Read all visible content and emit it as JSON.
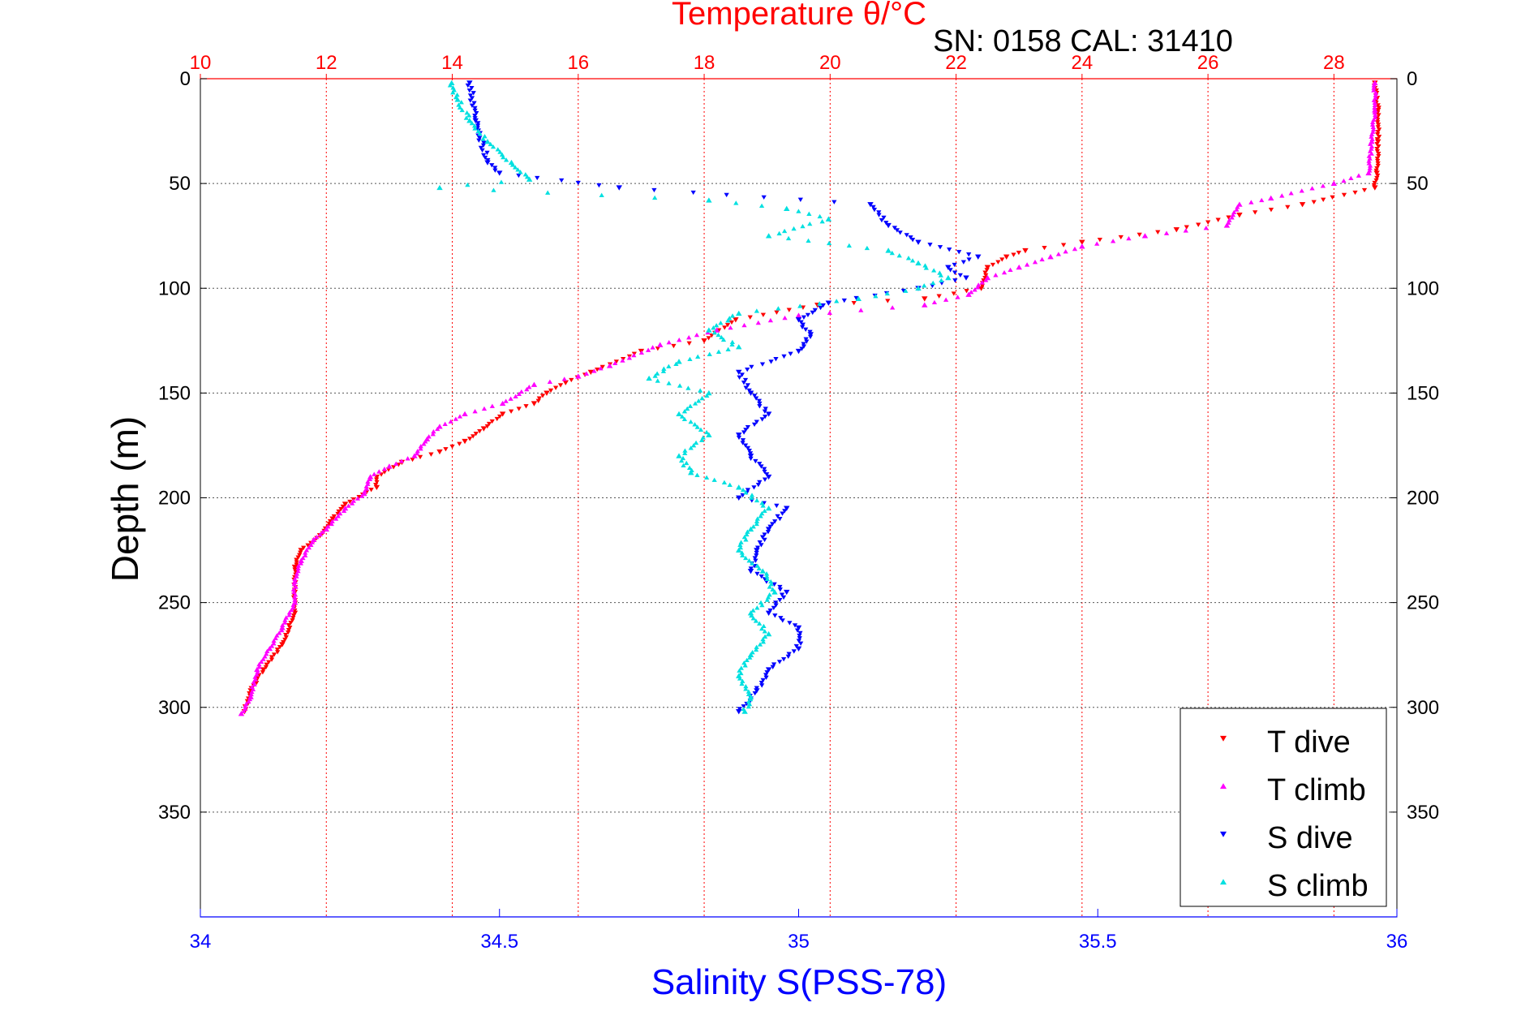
{
  "chart_data": {
    "type": "scatter",
    "title": "Temperature θ/°C",
    "subtitle": "SN: 0158  CAL: 31410",
    "ylabel": "Depth (m)",
    "xlabel": "Salinity S(PSS-78)",
    "ylim": [
      0,
      400
    ],
    "y_reversed": true,
    "y_ticks": [
      "0",
      "50",
      "100",
      "150",
      "200",
      "250",
      "300",
      "350"
    ],
    "temperature_axis": {
      "position": "top",
      "range": [
        10,
        29
      ],
      "ticks": [
        "10",
        "12",
        "14",
        "16",
        "18",
        "20",
        "22",
        "24",
        "26",
        "28"
      ],
      "grid": "dotted-red"
    },
    "salinity_axis": {
      "position": "bottom",
      "range": [
        34,
        36
      ],
      "ticks": [
        "34",
        "34.5",
        "35",
        "35.5",
        "36"
      ]
    },
    "depth_grid": "dotted-gray",
    "legend_position": "bottom-right",
    "colors": {
      "title": "#ff0000",
      "temperature_axis": "#ff0000",
      "salinity_axis": "#0000ff",
      "text": "#000000"
    },
    "series": [
      {
        "name": "T dive",
        "axis": "temperature",
        "color": "#ff0000",
        "marker": "triangle-down",
        "points": [
          [
            28.65,
            2
          ],
          [
            28.7,
            15
          ],
          [
            28.7,
            30
          ],
          [
            28.68,
            45
          ],
          [
            28.65,
            52
          ],
          [
            27.5,
            60
          ],
          [
            26.5,
            65
          ],
          [
            25.5,
            72
          ],
          [
            24,
            78
          ],
          [
            23.1,
            82
          ],
          [
            22.8,
            85
          ],
          [
            22.5,
            90
          ],
          [
            22.4,
            100
          ],
          [
            21.5,
            105
          ],
          [
            19.8,
            108
          ],
          [
            18.5,
            115
          ],
          [
            18,
            125
          ],
          [
            17,
            130
          ],
          [
            16.2,
            140
          ],
          [
            15.8,
            145
          ],
          [
            15.5,
            150
          ],
          [
            15.3,
            155
          ],
          [
            14.8,
            160
          ],
          [
            14.5,
            167
          ],
          [
            14.2,
            173
          ],
          [
            13.8,
            178
          ],
          [
            13.2,
            183
          ],
          [
            12.8,
            190
          ],
          [
            12.8,
            195
          ],
          [
            12.3,
            203
          ],
          [
            12.1,
            210
          ],
          [
            11.9,
            218
          ],
          [
            11.6,
            225
          ],
          [
            11.5,
            233
          ],
          [
            11.5,
            245
          ],
          [
            11.5,
            255
          ],
          [
            11.3,
            270
          ],
          [
            11,
            282
          ],
          [
            10.8,
            292
          ],
          [
            10.7,
            302
          ]
        ]
      },
      {
        "name": "T climb",
        "axis": "temperature",
        "color": "#ff00ff",
        "marker": "triangle-up",
        "points": [
          [
            28.65,
            2
          ],
          [
            28.65,
            15
          ],
          [
            28.6,
            30
          ],
          [
            28.55,
            45
          ],
          [
            28,
            50
          ],
          [
            27,
            57
          ],
          [
            26.5,
            60
          ],
          [
            26.3,
            70
          ],
          [
            25,
            75
          ],
          [
            24,
            80
          ],
          [
            23.5,
            85
          ],
          [
            23,
            90
          ],
          [
            22.5,
            95
          ],
          [
            22.2,
            103
          ],
          [
            21.5,
            108
          ],
          [
            19.5,
            113
          ],
          [
            18.2,
            120
          ],
          [
            17.3,
            127
          ],
          [
            16.5,
            137
          ],
          [
            16,
            142
          ],
          [
            15.3,
            146
          ],
          [
            14.8,
            155
          ],
          [
            14.2,
            160
          ],
          [
            13.8,
            166
          ],
          [
            13.6,
            172
          ],
          [
            13.4,
            180
          ],
          [
            13,
            185
          ],
          [
            12.7,
            190
          ],
          [
            12.6,
            198
          ],
          [
            12.3,
            205
          ],
          [
            12,
            215
          ],
          [
            11.8,
            220
          ],
          [
            11.6,
            230
          ],
          [
            11.5,
            240
          ],
          [
            11.5,
            250
          ],
          [
            11.3,
            262
          ],
          [
            11.1,
            272
          ],
          [
            10.9,
            282
          ],
          [
            10.8,
            295
          ],
          [
            10.65,
            303
          ]
        ]
      },
      {
        "name": "S dive",
        "axis": "salinity",
        "color": "#0000ff",
        "marker": "triangle-down",
        "points": [
          [
            34.45,
            2
          ],
          [
            34.46,
            20
          ],
          [
            34.48,
            40
          ],
          [
            34.5,
            45
          ],
          [
            34.7,
            52
          ],
          [
            35.12,
            60
          ],
          [
            35.15,
            70
          ],
          [
            35.2,
            78
          ],
          [
            35.3,
            85
          ],
          [
            35.25,
            90
          ],
          [
            35.28,
            95
          ],
          [
            35.2,
            100
          ],
          [
            35.05,
            107
          ],
          [
            35,
            115
          ],
          [
            35.02,
            122
          ],
          [
            35,
            130
          ],
          [
            34.9,
            140
          ],
          [
            34.92,
            150
          ],
          [
            34.95,
            160
          ],
          [
            34.9,
            170
          ],
          [
            34.92,
            180
          ],
          [
            34.95,
            190
          ],
          [
            34.9,
            200
          ],
          [
            34.98,
            205
          ],
          [
            34.95,
            215
          ],
          [
            34.93,
            225
          ],
          [
            34.92,
            235
          ],
          [
            34.98,
            245
          ],
          [
            34.95,
            255
          ],
          [
            35,
            262
          ],
          [
            35,
            272
          ],
          [
            34.95,
            282
          ],
          [
            34.93,
            292
          ],
          [
            34.9,
            302
          ]
        ]
      },
      {
        "name": "S climb",
        "axis": "salinity",
        "color": "#00e0e0",
        "marker": "triangle-up",
        "points": [
          [
            34.42,
            2
          ],
          [
            34.43,
            10
          ],
          [
            34.45,
            20
          ],
          [
            34.48,
            30
          ],
          [
            34.52,
            40
          ],
          [
            34.55,
            48
          ],
          [
            34.4,
            52
          ],
          [
            34.85,
            58
          ],
          [
            34.98,
            62
          ],
          [
            35.05,
            67
          ],
          [
            34.95,
            75
          ],
          [
            35.15,
            82
          ],
          [
            35.2,
            88
          ],
          [
            35.25,
            95
          ],
          [
            35.2,
            100
          ],
          [
            35.1,
            105
          ],
          [
            34.9,
            112
          ],
          [
            34.85,
            120
          ],
          [
            34.9,
            128
          ],
          [
            34.8,
            135
          ],
          [
            34.75,
            143
          ],
          [
            34.85,
            150
          ],
          [
            34.8,
            160
          ],
          [
            34.85,
            170
          ],
          [
            34.8,
            180
          ],
          [
            34.82,
            188
          ],
          [
            34.9,
            195
          ],
          [
            34.95,
            205
          ],
          [
            34.92,
            215
          ],
          [
            34.9,
            225
          ],
          [
            34.94,
            235
          ],
          [
            34.96,
            245
          ],
          [
            34.92,
            255
          ],
          [
            34.95,
            265
          ],
          [
            34.92,
            275
          ],
          [
            34.9,
            285
          ],
          [
            34.92,
            295
          ],
          [
            34.91,
            302
          ]
        ]
      }
    ]
  }
}
